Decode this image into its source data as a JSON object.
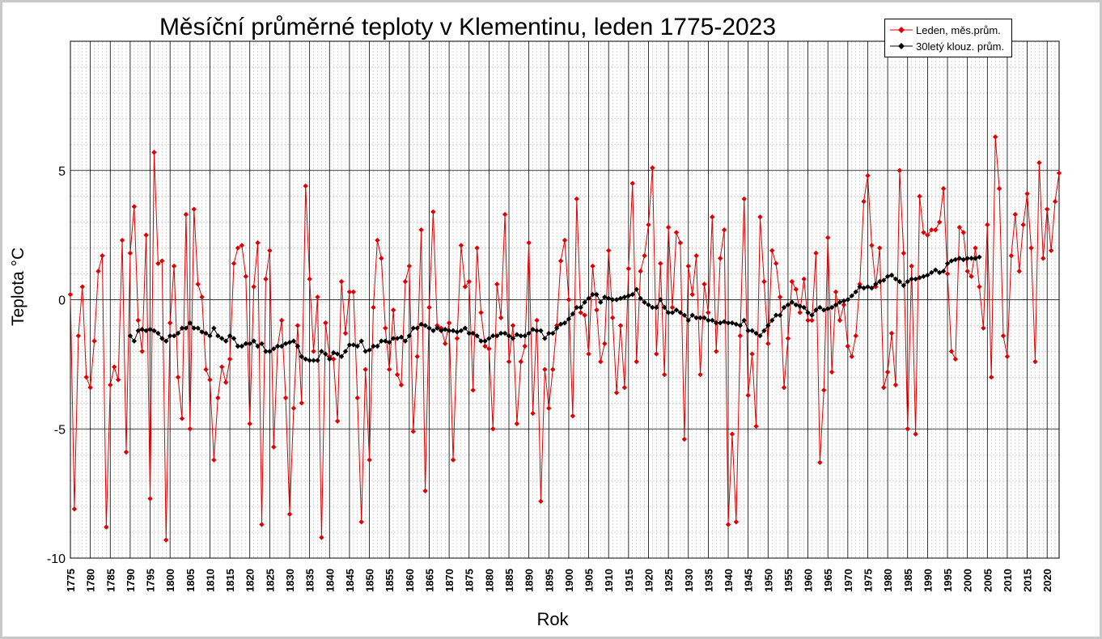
{
  "chart_data": {
    "type": "line",
    "title": "Měsíční průměrné teploty v Klementinu, leden 1775-2023",
    "xlabel": "Rok",
    "ylabel": "Teplota  °C",
    "xlim": [
      1775,
      2023
    ],
    "ylim": [
      -10,
      10
    ],
    "yticks": [
      -10,
      -5,
      0,
      5
    ],
    "xticks": [
      1775,
      1780,
      1785,
      1790,
      1795,
      1800,
      1805,
      1810,
      1815,
      1820,
      1825,
      1830,
      1835,
      1840,
      1845,
      1850,
      1855,
      1860,
      1865,
      1870,
      1875,
      1880,
      1885,
      1890,
      1895,
      1900,
      1905,
      1910,
      1915,
      1920,
      1925,
      1930,
      1935,
      1940,
      1945,
      1950,
      1955,
      1960,
      1965,
      1970,
      1975,
      1980,
      1985,
      1990,
      1995,
      2000,
      2005,
      2010,
      2015,
      2020
    ],
    "grid": true,
    "legend_position": "top-right",
    "series": [
      {
        "name": "Leden, měs.prům.",
        "color": "#e00000",
        "x_start": 1775,
        "values": [
          0.2,
          -8.1,
          -1.4,
          0.5,
          -3.0,
          -3.4,
          -1.6,
          1.1,
          1.7,
          -8.8,
          -3.3,
          -2.6,
          -3.1,
          2.3,
          -5.9,
          1.8,
          3.6,
          -0.8,
          -2.0,
          2.5,
          -7.7,
          5.7,
          1.4,
          1.5,
          -9.3,
          -0.9,
          1.3,
          -3.0,
          -4.6,
          3.3,
          -5.0,
          3.5,
          0.6,
          0.1,
          -2.7,
          -3.1,
          -6.2,
          -3.8,
          -2.6,
          -3.2,
          -2.3,
          1.4,
          2.0,
          2.1,
          0.9,
          -4.8,
          0.5,
          2.2,
          -8.7,
          0.8,
          1.9,
          -5.7,
          -1.8,
          -0.8,
          -3.8,
          -8.3,
          -4.2,
          -1.0,
          -4.0,
          4.4,
          0.8,
          -2.0,
          0.1,
          -9.2,
          -0.9,
          -2.2,
          -2.3,
          -4.7,
          0.7,
          -1.3,
          0.3,
          0.3,
          -3.8,
          -8.6,
          -2.7,
          -6.2,
          -0.3,
          2.3,
          1.6,
          -1.1,
          -2.7,
          -0.4,
          -2.9,
          -3.3,
          0.7,
          1.3,
          -5.1,
          -2.2,
          2.7,
          -7.4,
          -0.3,
          3.4,
          -1.0,
          -1.1,
          -1.7,
          -0.9,
          -6.2,
          -1.5,
          2.1,
          0.5,
          0.7,
          -3.5,
          2.0,
          -0.5,
          -1.8,
          -1.9,
          -5.0,
          0.6,
          -0.7,
          3.3,
          -2.4,
          -1.0,
          -4.8,
          -2.4,
          -1.8,
          2.2,
          -4.4,
          -0.8,
          -7.8,
          -2.7,
          -4.2,
          -2.7,
          -1.0,
          1.5,
          2.3,
          0.0,
          -4.5,
          3.9,
          -0.5,
          -0.6,
          -2.1,
          1.3,
          -0.4,
          -2.4,
          -1.7,
          1.9,
          -0.7,
          -3.6,
          -1.0,
          -3.4,
          1.2,
          4.5,
          -2.4,
          1.1,
          1.7,
          2.9,
          5.1,
          -2.1,
          1.4,
          -2.9,
          2.8,
          -0.3,
          2.6,
          2.2,
          -5.4,
          1.3,
          0.2,
          1.7,
          -2.9,
          0.6,
          -0.5,
          3.2,
          -2.0,
          1.6,
          2.7,
          -8.7,
          -5.2,
          -8.6,
          -1.4,
          3.9,
          -3.7,
          -2.1,
          -4.9,
          3.2,
          0.7,
          -1.7,
          1.9,
          1.4,
          0.1,
          -3.4,
          -1.5,
          0.7,
          0.4,
          -0.5,
          0.8,
          -0.8,
          -0.8,
          1.8,
          -6.3,
          -3.5,
          2.4,
          -2.8,
          0.3,
          -0.8,
          -0.2,
          -1.8,
          -2.2,
          -1.4,
          0.6,
          3.8,
          4.8,
          2.1,
          0.5,
          2.0,
          -3.4,
          -2.8,
          -1.3,
          -3.3,
          5.0,
          1.8,
          -5.0,
          1.3,
          -5.2,
          4.0,
          2.6,
          2.5,
          2.7,
          2.7,
          3.0,
          4.3,
          1.0,
          -2.0,
          -2.3,
          2.8,
          2.6,
          1.1,
          0.9,
          2.0,
          0.5,
          -1.1,
          2.9,
          -3.0,
          6.3,
          4.3,
          -1.4,
          -2.2,
          1.7,
          3.3,
          1.1,
          2.9,
          4.1,
          2.0,
          -2.4,
          5.3,
          1.6,
          3.5,
          1.9,
          3.8,
          4.9
        ]
      },
      {
        "name": "30letý klouz. prům.",
        "color": "#000000",
        "x_start": 1790,
        "values": [
          -1.4,
          -1.6,
          -1.2,
          -1.15,
          -1.2,
          -1.15,
          -1.2,
          -1.3,
          -1.5,
          -1.6,
          -1.4,
          -1.4,
          -1.3,
          -1.1,
          -1.1,
          -0.9,
          -1.1,
          -1.1,
          -1.25,
          -1.3,
          -1.4,
          -1.1,
          -1.4,
          -1.5,
          -1.6,
          -1.4,
          -1.5,
          -1.8,
          -1.8,
          -1.7,
          -1.7,
          -1.6,
          -1.8,
          -1.7,
          -2.0,
          -2.0,
          -1.9,
          -1.8,
          -1.8,
          -1.7,
          -1.65,
          -1.6,
          -1.8,
          -2.2,
          -2.3,
          -2.35,
          -2.35,
          -2.35,
          -2.0,
          -2.1,
          -2.3,
          -2.05,
          -2.1,
          -2.2,
          -2.0,
          -1.75,
          -1.75,
          -1.8,
          -1.6,
          -2.0,
          -1.95,
          -1.8,
          -1.8,
          -1.6,
          -1.6,
          -1.65,
          -1.5,
          -1.5,
          -1.45,
          -1.6,
          -1.4,
          -1.1,
          -1.1,
          -0.95,
          -1.0,
          -1.1,
          -1.2,
          -1.1,
          -1.2,
          -1.15,
          -1.2,
          -1.2,
          -1.25,
          -1.2,
          -1.1,
          -1.3,
          -1.3,
          -1.4,
          -1.6,
          -1.6,
          -1.5,
          -1.4,
          -1.4,
          -1.3,
          -1.3,
          -1.4,
          -1.5,
          -1.35,
          -1.4,
          -1.4,
          -1.3,
          -1.15,
          -1.2,
          -1.2,
          -1.5,
          -1.3,
          -1.3,
          -1.1,
          -0.95,
          -0.9,
          -0.75,
          -0.55,
          -0.3,
          -0.3,
          -0.1,
          0.05,
          0.2,
          0.2,
          -0.1,
          0.1,
          0.05,
          0.0,
          0.0,
          0.05,
          0.1,
          0.15,
          0.2,
          0.4,
          0.05,
          -0.1,
          -0.2,
          -0.3,
          -0.3,
          0.0,
          -0.3,
          -0.5,
          -0.5,
          -0.4,
          -0.5,
          -0.6,
          -0.8,
          -0.6,
          -0.7,
          -0.7,
          -0.7,
          -0.8,
          -0.8,
          -0.9,
          -0.9,
          -0.85,
          -0.9,
          -0.9,
          -0.95,
          -1.0,
          -0.8,
          -1.2,
          -1.2,
          -1.3,
          -1.4,
          -1.2,
          -1.0,
          -0.8,
          -0.6,
          -0.6,
          -0.3,
          -0.2,
          -0.1,
          -0.2,
          -0.25,
          -0.3,
          -0.5,
          -0.6,
          -0.4,
          -0.3,
          -0.4,
          -0.35,
          -0.3,
          -0.2,
          -0.1,
          -0.05,
          0.0,
          0.15,
          0.3,
          0.5,
          0.45,
          0.5,
          0.45,
          0.6,
          0.7,
          0.75,
          0.9,
          0.95,
          0.8,
          0.7,
          0.55,
          0.7,
          0.8,
          0.8,
          0.85,
          0.9,
          0.95,
          1.05,
          1.15,
          1.05,
          1.1,
          1.4,
          1.5,
          1.55,
          1.6,
          1.55,
          1.6,
          1.6,
          1.6,
          1.65
        ]
      }
    ]
  }
}
